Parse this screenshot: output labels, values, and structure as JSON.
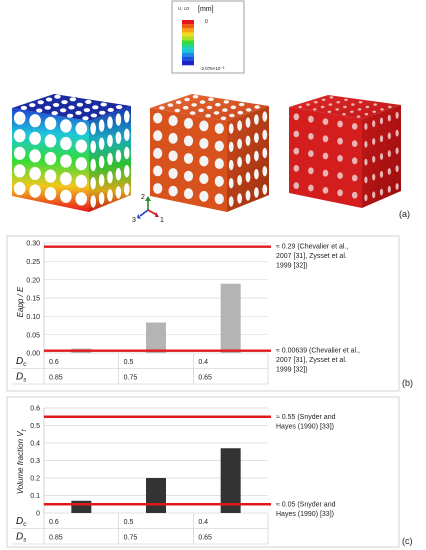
{
  "colorbar": {
    "label": "U, U2",
    "unit": "[mm]",
    "max_label": "0",
    "min_label": "-2.076×10⁻³",
    "colors": [
      "#e8141c",
      "#f05a14",
      "#f8a01a",
      "#f0dc1e",
      "#a6e22a",
      "#32dc3a",
      "#24d29a",
      "#1ec8dc",
      "#1e8ce6",
      "#1e50dc",
      "#2020c8"
    ]
  },
  "triad": {
    "axis_labels": [
      "2",
      "3",
      "1"
    ],
    "colors": [
      "#2a8a2a",
      "#1c3ccc",
      "#c42020"
    ]
  },
  "panel_labels": {
    "a": "(a)",
    "b": "(b)",
    "c": "(c)"
  },
  "cube_colors": {
    "displacement_top": "#1a2aa0",
    "hollow": "#d84a1e",
    "solid": "#cc1a1a"
  },
  "chart_data": [
    {
      "type": "bar",
      "categories": [
        "0.6",
        "0.5",
        "0.4"
      ],
      "values": [
        0.012,
        0.083,
        0.189
      ],
      "ylabel": "Eapp / E",
      "ylim": [
        0,
        0.3
      ],
      "yticks": [
        "0.00",
        "0.05",
        "0.10",
        "0.15",
        "0.20",
        "0.25",
        "0.30"
      ],
      "bar_color": "#b4b4b4",
      "grid": true,
      "reference_lines": [
        {
          "value": 0.29,
          "text": [
            "≈ 0.29 (Chevalier et al.,",
            "2007 [31], Zysset et al.",
            "1999 [32])"
          ]
        },
        {
          "value": 0.00639,
          "text": [
            "≈ 0.00639 (Chevalier et al.,",
            "2007 [31], Zysset et al.",
            "1999 [32])"
          ]
        }
      ],
      "table": {
        "rows": [
          {
            "label": "D",
            "sub": "c",
            "values": [
              "0.6",
              "0.5",
              "0.4"
            ]
          },
          {
            "label": "D",
            "sub": "s",
            "values": [
              "0.85",
              "0.75",
              "0.65"
            ]
          }
        ]
      }
    },
    {
      "type": "bar",
      "categories": [
        "0.6",
        "0.5",
        "0.4"
      ],
      "values": [
        0.07,
        0.2,
        0.37
      ],
      "ylabel": "Volume fraction V",
      "ylabel_sub": "f",
      "ylim": [
        0,
        0.6
      ],
      "yticks": [
        "0",
        "0.1",
        "0.2",
        "0.3",
        "0.4",
        "0.5",
        "0.6"
      ],
      "bar_color": "#333333",
      "grid": true,
      "reference_lines": [
        {
          "value": 0.55,
          "text": [
            "≈ 0.55 (Snyder and",
            "Hayes (1990) [33])"
          ]
        },
        {
          "value": 0.05,
          "text": [
            "≈ 0.05 (Snyder and",
            "Hayes (1990) [33])"
          ]
        }
      ],
      "table": {
        "rows": [
          {
            "label": "D",
            "sub": "c",
            "values": [
              "0.6",
              "0.5",
              "0.4"
            ]
          },
          {
            "label": "D",
            "sub": "s",
            "values": [
              "0.85",
              "0.75",
              "0.65"
            ]
          }
        ]
      }
    }
  ]
}
